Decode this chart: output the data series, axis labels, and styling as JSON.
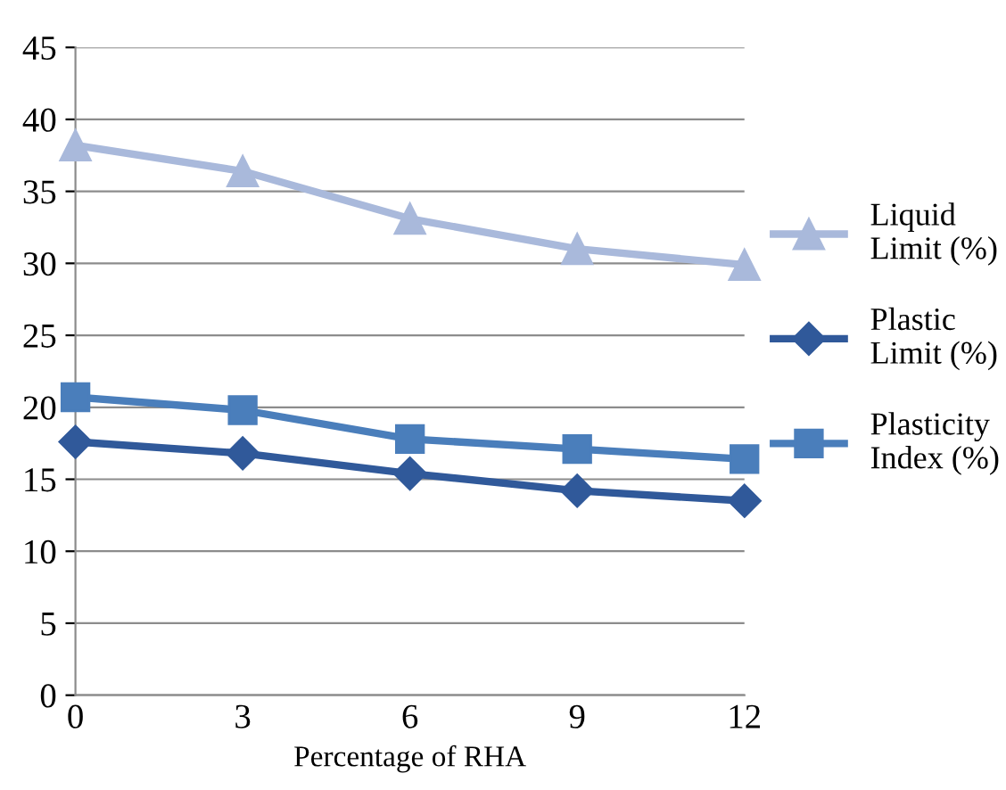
{
  "chart_data": {
    "type": "line",
    "xlabel": "Percentage of RHA",
    "x": [
      0,
      3,
      6,
      9,
      12
    ],
    "xlim": [
      0,
      12
    ],
    "xticks": [
      0,
      3,
      6,
      9,
      12
    ],
    "ylim": [
      0,
      45
    ],
    "yticks": [
      0,
      5,
      10,
      15,
      20,
      25,
      30,
      35,
      40,
      45
    ],
    "grid": "y",
    "legend": "right",
    "series": [
      {
        "name": "Liquid Limit (%)",
        "color": "#a9b9db",
        "marker": "triangle",
        "values": [
          38.2,
          36.4,
          33.1,
          31.0,
          29.9
        ]
      },
      {
        "name": "Plastic Limit (%)",
        "color": "#30599a",
        "marker": "diamond",
        "values": [
          17.6,
          16.8,
          15.4,
          14.2,
          13.5
        ]
      },
      {
        "name": "Plasticity Index (%)",
        "color": "#4a7ebb",
        "marker": "square",
        "values": [
          20.7,
          19.8,
          17.8,
          17.1,
          16.4
        ]
      }
    ]
  }
}
